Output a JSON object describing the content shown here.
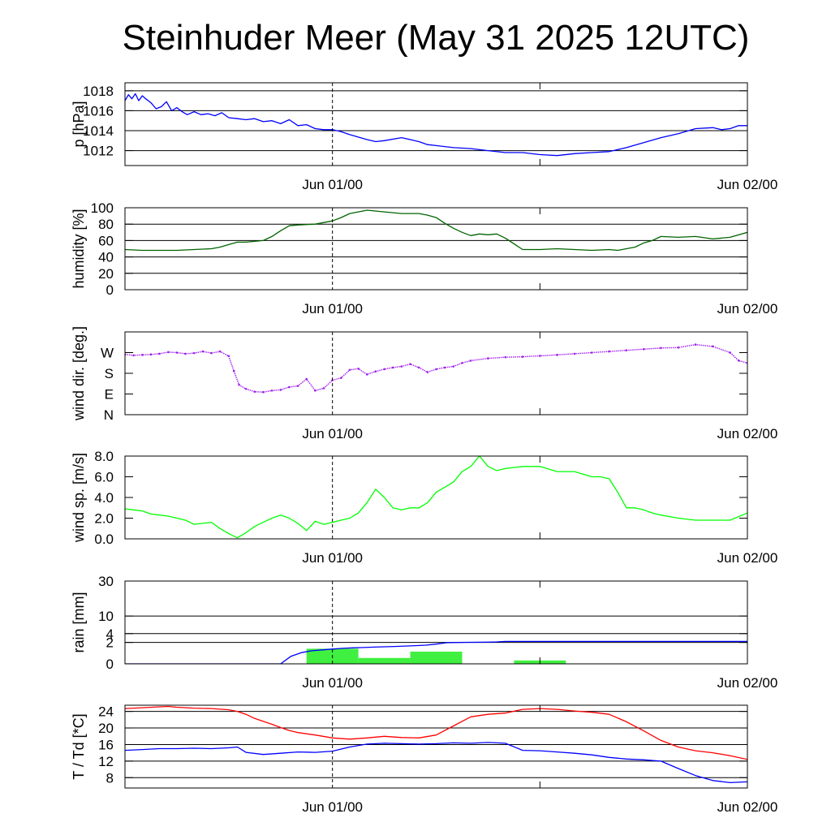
{
  "title": "Steinhuder Meer (May 31 2025 12UTC)",
  "chart_data": [
    {
      "type": "line",
      "ylabel": "p [hPa]",
      "x_range_hours": [
        0,
        36
      ],
      "ylim": [
        1010.5,
        1018.8
      ],
      "yticks": [
        1012,
        1014,
        1016,
        1018
      ],
      "xticks": [
        {
          "hour": 12,
          "label": "Jun 01/00"
        },
        {
          "hour": 36,
          "label": "Jun 02/00"
        }
      ],
      "grid": true,
      "series": [
        {
          "color": "#0000ff",
          "x": [
            0,
            0.2,
            0.4,
            0.6,
            0.8,
            1.0,
            1.2,
            1.5,
            1.8,
            2.1,
            2.4,
            2.7,
            3.0,
            3.3,
            3.6,
            4.0,
            4.4,
            4.8,
            5.2,
            5.6,
            6.0,
            6.5,
            7.0,
            7.5,
            8.0,
            8.5,
            9.0,
            9.5,
            10.0,
            10.5,
            11.0,
            11.5,
            12.0,
            12.5,
            13.0,
            14.0,
            14.5,
            15.0,
            16.0,
            17.0,
            17.5,
            18.0,
            19.0,
            20.0,
            21.0,
            22.0,
            23.0,
            24.0,
            25.0,
            26.0,
            27.0,
            28.0,
            29.0,
            30.0,
            31.0,
            32.0,
            33.0,
            34.0,
            34.5,
            35.0,
            35.5,
            36.0
          ],
          "values": [
            1017.0,
            1017.6,
            1017.2,
            1017.7,
            1017.0,
            1017.5,
            1017.2,
            1016.8,
            1016.2,
            1016.4,
            1016.9,
            1016.0,
            1016.3,
            1015.9,
            1015.6,
            1015.9,
            1015.6,
            1015.7,
            1015.5,
            1015.8,
            1015.3,
            1015.2,
            1015.1,
            1015.2,
            1014.9,
            1015.0,
            1014.7,
            1015.1,
            1014.5,
            1014.6,
            1014.2,
            1014.1,
            1014.1,
            1013.9,
            1013.6,
            1013.1,
            1012.9,
            1013.0,
            1013.3,
            1012.9,
            1012.6,
            1012.5,
            1012.3,
            1012.2,
            1012.0,
            1011.8,
            1011.8,
            1011.6,
            1011.5,
            1011.7,
            1011.8,
            1011.9,
            1012.3,
            1012.8,
            1013.3,
            1013.7,
            1014.2,
            1014.3,
            1014.1,
            1014.2,
            1014.5,
            1014.5
          ]
        }
      ]
    },
    {
      "type": "line",
      "ylabel": "humidity [%]",
      "x_range_hours": [
        0,
        36
      ],
      "ylim": [
        0,
        100
      ],
      "yticks": [
        0,
        20,
        40,
        60,
        80,
        100
      ],
      "xticks": [
        {
          "hour": 12,
          "label": "Jun 01/00"
        },
        {
          "hour": 36,
          "label": "Jun 02/00"
        }
      ],
      "grid": true,
      "series": [
        {
          "color": "#006400",
          "x": [
            0,
            1,
            2,
            3,
            4,
            5,
            5.5,
            6,
            6.5,
            7,
            7.5,
            8,
            8.5,
            9,
            9.5,
            10,
            11,
            12,
            12.5,
            13,
            13.5,
            14,
            15,
            16,
            17,
            17.5,
            18,
            18.5,
            19,
            19.5,
            20,
            20.5,
            21,
            21.5,
            22,
            23,
            24,
            25,
            26,
            27,
            28,
            28.5,
            29,
            29.5,
            30,
            30.5,
            31,
            32,
            33,
            34,
            35,
            36
          ],
          "values": [
            49,
            48,
            48,
            48,
            49,
            50,
            52,
            55,
            58,
            58,
            59,
            60,
            65,
            72,
            78,
            79,
            80,
            84,
            88,
            93,
            95,
            97,
            95,
            93,
            93,
            91,
            88,
            81,
            75,
            70,
            66,
            68,
            67,
            68,
            63,
            49,
            49,
            50,
            49,
            48,
            49,
            48,
            50,
            52,
            57,
            60,
            65,
            64,
            65,
            62,
            64,
            70
          ]
        }
      ]
    },
    {
      "type": "scatter",
      "ylabel": "wind dir. [deg.]",
      "x_range_hours": [
        0,
        36
      ],
      "ylim": [
        0,
        360
      ],
      "yticks": [
        0,
        90,
        180,
        270
      ],
      "ytick_labels": [
        "N",
        "E",
        "S",
        "W"
      ],
      "xticks": [
        {
          "hour": 12,
          "label": "Jun 01/00"
        },
        {
          "hour": 36,
          "label": "Jun 02/00"
        }
      ],
      "grid": false,
      "series": [
        {
          "color": "#a020f0",
          "x": [
            0,
            0.5,
            1,
            1.5,
            2,
            2.5,
            3,
            3.5,
            4,
            4.5,
            5,
            5.5,
            6,
            6.3,
            6.6,
            7,
            7.5,
            8,
            8.5,
            9,
            9.5,
            10,
            10.5,
            11,
            11.5,
            12,
            12.5,
            13,
            13.5,
            14,
            14.5,
            15,
            15.5,
            16,
            16.5,
            17,
            17.5,
            18,
            18.5,
            19,
            19.5,
            20,
            21,
            22,
            23,
            24,
            25,
            26,
            27,
            28,
            29,
            30,
            31,
            32,
            33,
            34,
            35,
            35.5,
            36
          ],
          "values": [
            262,
            258,
            260,
            262,
            265,
            272,
            270,
            265,
            268,
            275,
            268,
            275,
            255,
            190,
            130,
            112,
            100,
            98,
            105,
            108,
            120,
            125,
            155,
            105,
            115,
            150,
            160,
            195,
            200,
            175,
            188,
            198,
            205,
            210,
            220,
            205,
            185,
            198,
            205,
            210,
            225,
            235,
            245,
            250,
            252,
            256,
            260,
            265,
            270,
            275,
            280,
            285,
            290,
            292,
            305,
            297,
            270,
            235,
            225
          ]
        }
      ]
    },
    {
      "type": "line",
      "ylabel": "wind sp. [m/s]",
      "x_range_hours": [
        0,
        36
      ],
      "ylim": [
        0,
        8.0
      ],
      "yticks": [
        0.0,
        2.0,
        4.0,
        6.0,
        8.0
      ],
      "ytick_labels": [
        "0.0",
        "2.0",
        "4.0",
        "6.0",
        "8.0"
      ],
      "xticks": [
        {
          "hour": 12,
          "label": "Jun 01/00"
        },
        {
          "hour": 36,
          "label": "Jun 02/00"
        }
      ],
      "grid": false,
      "series": [
        {
          "color": "#00ff00",
          "x": [
            0,
            0.5,
            1,
            1.5,
            2,
            2.5,
            3,
            3.5,
            4,
            5,
            5.5,
            6,
            6.5,
            7,
            7.5,
            8,
            8.5,
            9,
            9.5,
            10,
            10.5,
            11,
            11.5,
            12,
            12.5,
            13,
            13.5,
            14,
            14.5,
            15,
            15.5,
            16,
            16.5,
            17,
            17.5,
            18,
            18.5,
            19,
            19.5,
            20,
            20.5,
            21,
            21.5,
            22,
            23,
            24,
            25,
            26,
            27,
            27.5,
            28,
            28.5,
            29,
            29.5,
            30,
            30.5,
            31,
            32,
            33,
            34,
            35,
            36
          ],
          "values": [
            2.9,
            2.8,
            2.7,
            2.4,
            2.3,
            2.2,
            2.0,
            1.8,
            1.4,
            1.6,
            1.0,
            0.5,
            0.1,
            0.6,
            1.2,
            1.6,
            2.0,
            2.3,
            2.0,
            1.5,
            0.8,
            1.7,
            1.4,
            1.6,
            1.8,
            2.0,
            2.5,
            3.5,
            4.8,
            4.0,
            3.0,
            2.8,
            3.0,
            3.0,
            3.5,
            4.5,
            5.0,
            5.5,
            6.5,
            7.0,
            8.0,
            7.0,
            6.6,
            6.8,
            7.0,
            7.0,
            6.5,
            6.5,
            6.0,
            6.0,
            5.8,
            4.5,
            3.0,
            3.0,
            2.8,
            2.5,
            2.3,
            2.0,
            1.8,
            1.8,
            1.8,
            2.5
          ]
        }
      ]
    },
    {
      "type": "bar",
      "ylabel": "rain [mm]",
      "x_range_hours": [
        0,
        36
      ],
      "ylim": [
        0,
        30
      ],
      "yscale": "sqrt",
      "yticks": [
        0,
        2,
        4,
        10,
        30
      ],
      "xticks": [
        {
          "hour": 12,
          "label": "Jun 01/00"
        },
        {
          "hour": 36,
          "label": "Jun 02/00"
        }
      ],
      "grid": true,
      "bars": {
        "color": "#40f040",
        "x_start": [
          10.5,
          13.5,
          16.5,
          22.5
        ],
        "x_end": [
          13.5,
          16.5,
          19.5,
          25.5
        ],
        "values": [
          1.0,
          0.15,
          0.65,
          0.05
        ]
      },
      "series": [
        {
          "color": "#0000ff",
          "x": [
            0,
            9.0,
            9.6,
            10.2,
            10.8,
            11.4,
            12.0,
            12.6,
            13.2,
            13.8,
            14.4,
            15.0,
            15.6,
            16.2,
            16.8,
            17.4,
            18.0,
            18.6,
            19.2,
            19.8,
            21,
            21.5,
            22,
            24,
            27,
            30,
            33,
            36
          ],
          "values": [
            0,
            0,
            0.25,
            0.55,
            0.75,
            0.85,
            0.95,
            1.05,
            1.12,
            1.17,
            1.22,
            1.27,
            1.32,
            1.38,
            1.45,
            1.52,
            1.7,
            1.95,
            2.0,
            2.02,
            2.05,
            2.1,
            2.2,
            2.2,
            2.2,
            2.2,
            2.2,
            2.2
          ]
        }
      ]
    },
    {
      "type": "line",
      "ylabel": "T / Td [*C]",
      "x_range_hours": [
        0,
        36
      ],
      "ylim": [
        5.5,
        25.5
      ],
      "yticks": [
        8,
        12,
        16,
        20,
        24
      ],
      "xticks": [
        {
          "hour": 12,
          "label": "Jun 01/00"
        },
        {
          "hour": 36,
          "label": "Jun 02/00"
        }
      ],
      "grid": true,
      "series": [
        {
          "color": "#ff0000",
          "x": [
            0,
            1,
            2,
            2.5,
            3,
            4,
            5,
            6,
            6.5,
            7,
            7.5,
            8,
            8.5,
            9,
            9.5,
            10,
            11,
            12,
            13,
            14,
            15,
            16,
            17,
            18,
            19,
            20,
            21,
            22,
            23,
            24,
            25,
            26,
            27,
            28,
            29,
            30,
            31,
            32,
            33,
            34,
            35,
            36
          ],
          "values": [
            24.7,
            24.9,
            25.1,
            25.2,
            25.0,
            24.8,
            24.7,
            24.4,
            24.0,
            23.3,
            22.3,
            21.6,
            20.9,
            20.1,
            19.4,
            18.9,
            18.3,
            17.6,
            17.3,
            17.6,
            18.0,
            17.7,
            17.6,
            18.3,
            20.5,
            22.7,
            23.3,
            23.6,
            24.5,
            24.7,
            24.5,
            24.1,
            23.8,
            23.3,
            21.5,
            19.3,
            17.0,
            15.4,
            14.5,
            14.0,
            13.3,
            12.4
          ]
        },
        {
          "color": "#0000ff",
          "x": [
            0,
            1,
            2,
            3,
            4,
            5,
            6,
            6.5,
            7,
            8,
            9,
            10,
            11,
            12,
            13,
            14,
            15,
            16,
            17,
            18,
            19,
            20,
            21,
            22,
            23,
            24,
            25,
            26,
            27,
            28,
            29,
            30,
            31,
            32,
            33,
            34,
            35,
            36
          ],
          "values": [
            14.6,
            14.8,
            15.0,
            15.0,
            15.1,
            15.0,
            15.2,
            15.4,
            14.1,
            13.6,
            13.9,
            14.2,
            14.1,
            14.4,
            15.4,
            16.1,
            16.3,
            16.2,
            16.1,
            16.2,
            16.4,
            16.3,
            16.5,
            16.3,
            14.6,
            14.5,
            14.2,
            13.9,
            13.5,
            12.9,
            12.5,
            12.3,
            12.0,
            10.2,
            8.5,
            7.3,
            6.8,
            7.0
          ]
        }
      ]
    }
  ]
}
